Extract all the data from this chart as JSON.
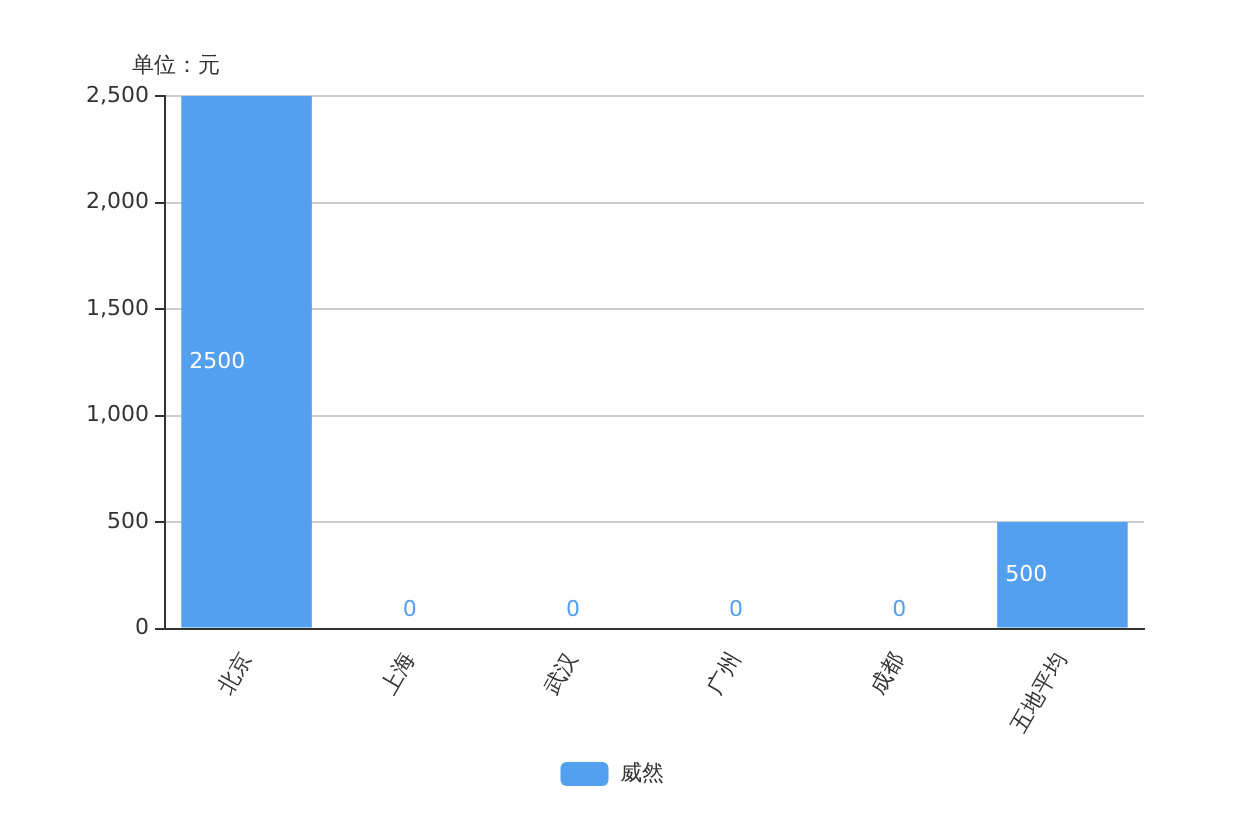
{
  "chart_data": {
    "type": "bar",
    "ylabel": "单位：元",
    "categories": [
      "北京",
      "上海",
      "武汉",
      "广州",
      "成都",
      "五地平均"
    ],
    "series": [
      {
        "name": "威然",
        "color": "#539ff0",
        "values": [
          2500,
          0,
          0,
          0,
          0,
          500
        ]
      }
    ],
    "ylim": [
      0,
      2500
    ],
    "yticks": [
      {
        "value": 0,
        "label": "0"
      },
      {
        "value": 500,
        "label": "500"
      },
      {
        "value": 1000,
        "label": "1,000"
      },
      {
        "value": 1500,
        "label": "1,500"
      },
      {
        "value": 2000,
        "label": "2,000"
      },
      {
        "value": 2500,
        "label": "2,500"
      }
    ],
    "grid": "y",
    "legend": "bottom",
    "data_labels": true
  }
}
